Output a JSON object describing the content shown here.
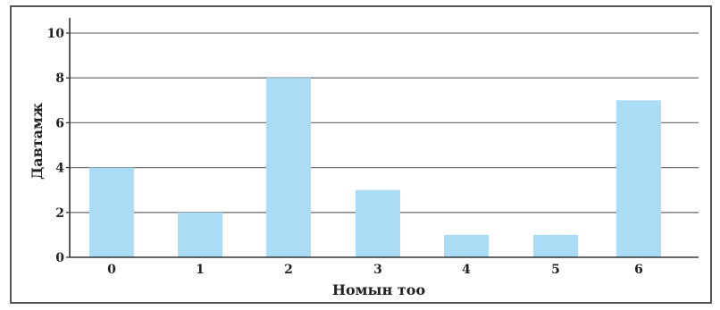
{
  "chart_data": {
    "type": "bar",
    "categories": [
      "0",
      "1",
      "2",
      "3",
      "4",
      "5",
      "6"
    ],
    "values": [
      4,
      2,
      8,
      3,
      1,
      1,
      7
    ],
    "title": "",
    "xlabel": "Номын тоо",
    "ylabel": "Давтамж",
    "ylim": [
      0,
      10
    ],
    "yticks": [
      "0",
      "2",
      "4",
      "6",
      "8",
      "10"
    ],
    "grid": true,
    "legend": "none",
    "bar_color": "#aadcf5",
    "grid_color": "#777777"
  }
}
